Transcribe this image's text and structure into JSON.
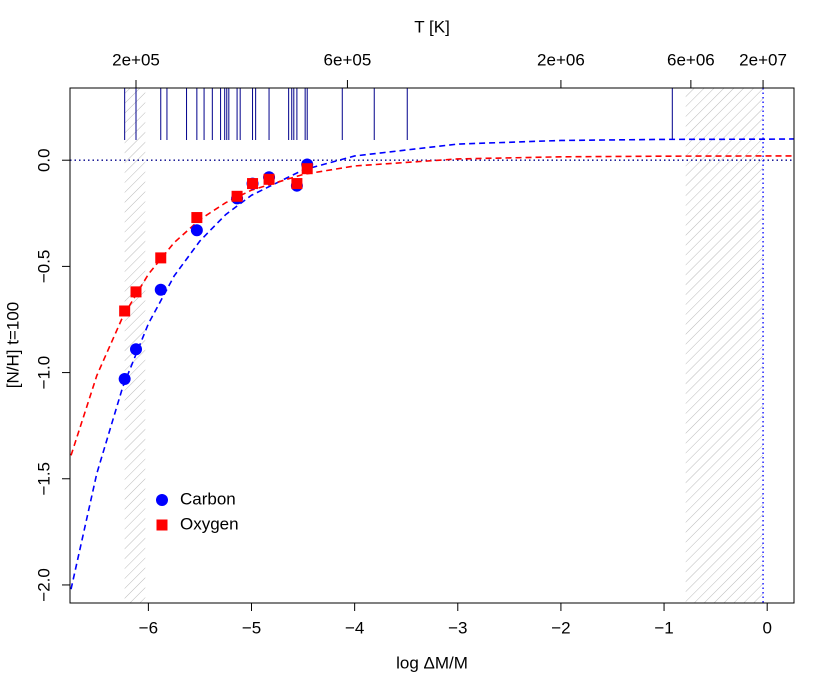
{
  "chart_data": {
    "type": "scatter",
    "xlabel": "log ΔM/M",
    "ylabel": "[N/H] t=100",
    "toplabel": "T [K]",
    "xlim": [
      -6.76,
      0.26
    ],
    "ylim": [
      -2.085,
      0.34
    ],
    "xticks": [
      {
        "value": -6,
        "label": "−6"
      },
      {
        "value": -5,
        "label": "−5"
      },
      {
        "value": -4,
        "label": "−4"
      },
      {
        "value": -3,
        "label": "−3"
      },
      {
        "value": -2,
        "label": "−2"
      },
      {
        "value": -1,
        "label": "−1"
      },
      0
    ],
    "yticks": [
      {
        "value": 0,
        "label": "0.0"
      },
      {
        "value": -0.5,
        "label": "−0.5"
      },
      {
        "value": -1,
        "label": "−1.0"
      },
      {
        "value": -1.5,
        "label": "−1.5"
      },
      {
        "value": -2,
        "label": "−2.0"
      }
    ],
    "topticks": [
      {
        "value": -6.12,
        "label": "2e+05"
      },
      {
        "value": -4.07,
        "label": "6e+05"
      },
      {
        "value": -2.0,
        "label": "2e+06"
      },
      {
        "value": -0.74,
        "label": "6e+06"
      },
      {
        "value": -0.04,
        "label": "2e+07"
      }
    ],
    "hline": 0,
    "vline": -0.04,
    "shaded": [
      [
        -6.23,
        -6.03
      ],
      [
        -0.79,
        -0.04
      ]
    ],
    "rug_color": "#00008b",
    "rug": [
      -6.23,
      -6.12,
      -5.88,
      -5.82,
      -5.63,
      -5.53,
      -5.46,
      -5.38,
      -5.3,
      -5.26,
      -5.24,
      -5.22,
      -5.14,
      -5.11,
      -4.99,
      -4.96,
      -4.83,
      -4.64,
      -4.61,
      -4.59,
      -4.56,
      -4.48,
      -4.46,
      -4.12,
      -3.81,
      -3.49,
      -0.92
    ],
    "legend": "bottom-left",
    "series": [
      {
        "name": "Carbon",
        "color": "#0000ff",
        "marker": "circle",
        "x": [
          -6.23,
          -6.12,
          -5.88,
          -5.53,
          -5.14,
          -4.99,
          -4.83,
          -4.56,
          -4.46
        ],
        "values": [
          -1.03,
          -0.89,
          -0.61,
          -0.33,
          -0.18,
          -0.11,
          -0.08,
          -0.12,
          -0.02
        ]
      },
      {
        "name": "Oxygen",
        "color": "#ff0000",
        "marker": "square",
        "x": [
          -6.23,
          -6.12,
          -5.88,
          -5.53,
          -5.14,
          -4.99,
          -4.83,
          -4.56,
          -4.46
        ],
        "values": [
          -0.71,
          -0.62,
          -0.46,
          -0.27,
          -0.17,
          -0.11,
          -0.09,
          -0.11,
          -0.04
        ]
      }
    ],
    "fits": [
      {
        "color": "#0000ff",
        "x": [
          -6.75,
          -6.5,
          -6.25,
          -6,
          -5.75,
          -5.5,
          -5.25,
          -5,
          -4.5,
          -4,
          -3,
          -2,
          -1,
          0,
          0.26
        ],
        "values": [
          -2.02,
          -1.475,
          -1.07,
          -0.77,
          -0.545,
          -0.38,
          -0.256,
          -0.165,
          -0.046,
          0.02,
          0.076,
          0.093,
          0.098,
          0.099,
          0.1
        ]
      },
      {
        "color": "#ff0000",
        "x": [
          -6.75,
          -6.5,
          -6.25,
          -6,
          -5.75,
          -5.5,
          -5.25,
          -5,
          -4.5,
          -4,
          -3,
          -2,
          -1,
          0,
          0.26
        ],
        "values": [
          -1.39,
          -1.014,
          -0.739,
          -0.537,
          -0.388,
          -0.279,
          -0.2,
          -0.141,
          -0.067,
          -0.027,
          0.006,
          0.016,
          0.019,
          0.02,
          0.02
        ]
      }
    ]
  }
}
